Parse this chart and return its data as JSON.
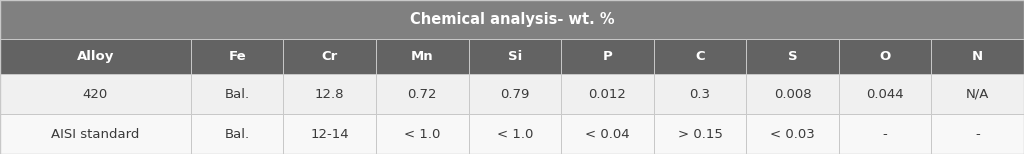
{
  "title": "Chemical analysis- wt. %",
  "columns": [
    "Alloy",
    "Fe",
    "Cr",
    "Mn",
    "Si",
    "P",
    "C",
    "S",
    "O",
    "N"
  ],
  "rows": [
    [
      "420",
      "Bal.",
      "12.8",
      "0.72",
      "0.79",
      "0.012",
      "0.3",
      "0.008",
      "0.044",
      "N/A"
    ],
    [
      "AISI standard",
      "Bal.",
      "12-14",
      "< 1.0",
      "< 1.0",
      "< 0.04",
      "> 0.15",
      "< 0.03",
      "-",
      "-"
    ]
  ],
  "header_bg": "#808080",
  "header_text_color": "#ffffff",
  "col_header_bg": "#636363",
  "col_header_text_color": "#ffffff",
  "row_bg_0": "#f0f0f0",
  "row_bg_1": "#f8f8f8",
  "border_color": "#c8c8c8",
  "title_fontsize": 10.5,
  "header_fontsize": 9.5,
  "cell_fontsize": 9.5,
  "fig_width": 10.24,
  "fig_height": 1.54,
  "col_widths_rel": [
    1.65,
    0.8,
    0.8,
    0.8,
    0.8,
    0.8,
    0.8,
    0.8,
    0.8,
    0.8
  ]
}
